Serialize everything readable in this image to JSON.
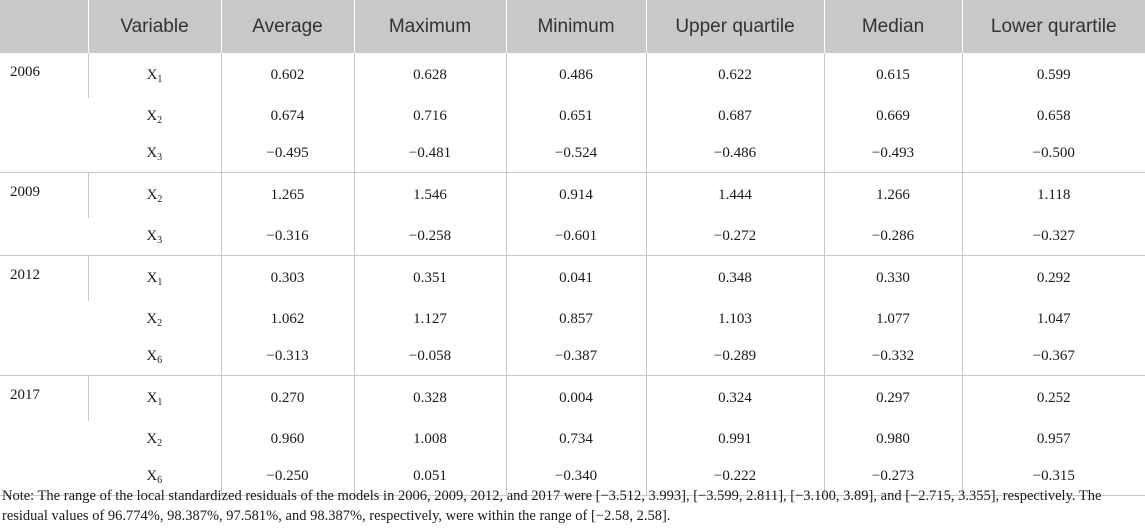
{
  "table": {
    "headers": [
      "",
      "Variable",
      "Average",
      "Maximum",
      "Minimum",
      "Upper quartile",
      "Median",
      "Lower qurartile"
    ],
    "groups": [
      {
        "year": "2006",
        "rows": [
          {
            "var": "X",
            "sub": "1",
            "values": [
              "0.602",
              "0.628",
              "0.486",
              "0.622",
              "0.615",
              "0.599"
            ]
          },
          {
            "var": "X",
            "sub": "2",
            "values": [
              "0.674",
              "0.716",
              "0.651",
              "0.687",
              "0.669",
              "0.658"
            ]
          },
          {
            "var": "X",
            "sub": "3",
            "values": [
              "−0.495",
              "−0.481",
              "−0.524",
              "−0.486",
              "−0.493",
              "−0.500"
            ]
          }
        ]
      },
      {
        "year": "2009",
        "rows": [
          {
            "var": "X",
            "sub": "2",
            "values": [
              "1.265",
              "1.546",
              "0.914",
              "1.444",
              "1.266",
              "1.118"
            ]
          },
          {
            "var": "X",
            "sub": "3",
            "values": [
              "−0.316",
              "−0.258",
              "−0.601",
              "−0.272",
              "−0.286",
              "−0.327"
            ]
          }
        ]
      },
      {
        "year": "2012",
        "rows": [
          {
            "var": "X",
            "sub": "1",
            "values": [
              "0.303",
              "0.351",
              "0.041",
              "0.348",
              "0.330",
              "0.292"
            ]
          },
          {
            "var": "X",
            "sub": "2",
            "values": [
              "1.062",
              "1.127",
              "0.857",
              "1.103",
              "1.077",
              "1.047"
            ]
          },
          {
            "var": "X",
            "sub": "6",
            "values": [
              "−0.313",
              "−0.058",
              "−0.387",
              "−0.289",
              "−0.332",
              "−0.367"
            ]
          }
        ]
      },
      {
        "year": "2017",
        "rows": [
          {
            "var": "X",
            "sub": "1",
            "values": [
              "0.270",
              "0.328",
              "0.004",
              "0.324",
              "0.297",
              "0.252"
            ]
          },
          {
            "var": "X",
            "sub": "2",
            "values": [
              "0.960",
              "1.008",
              "0.734",
              "0.991",
              "0.980",
              "0.957"
            ]
          },
          {
            "var": "X",
            "sub": "6",
            "values": [
              "−0.250",
              "0.051",
              "−0.340",
              "−0.222",
              "−0.273",
              "−0.315"
            ]
          }
        ]
      }
    ]
  },
  "note": "Note: The range of the local standardized residuals of the models in 2006, 2009, 2012, and 2017 were [−3.512, 3.993], [−3.599, 2.811], [−3.100, 3.89], and [−2.715, 3.355], respectively. The residual values of 96.774%, 98.387%, 97.581%, and 98.387%, respectively, were within the range of [−2.58, 2.58]."
}
